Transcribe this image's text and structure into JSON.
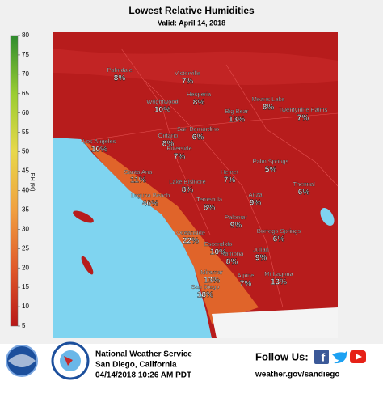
{
  "header": {
    "title": "Lowest Relative Humidities",
    "subtitle": "Valid: April 14, 2018"
  },
  "colorbar": {
    "label": "RH (%)",
    "ticks": [
      80,
      75,
      70,
      65,
      60,
      55,
      50,
      45,
      40,
      35,
      30,
      25,
      20,
      15,
      10,
      5
    ]
  },
  "cities": [
    {
      "name": "Palmdale",
      "value": "8%"
    },
    {
      "name": "Victorville",
      "value": "7%"
    },
    {
      "name": "Hesperia",
      "value": "8%"
    },
    {
      "name": "Wrightwood",
      "value": "10%"
    },
    {
      "name": "Means Lake",
      "value": "8%"
    },
    {
      "name": "Big Bear",
      "value": "13%"
    },
    {
      "name": "Twentynine Palms",
      "value": "7%"
    },
    {
      "name": "San Bernardino",
      "value": "6%"
    },
    {
      "name": "Ontario",
      "value": "8%"
    },
    {
      "name": "Riverside",
      "value": "7%"
    },
    {
      "name": "Los Angeles",
      "value": "10%"
    },
    {
      "name": "Palm Springs",
      "value": "5%"
    },
    {
      "name": "Santa Ana",
      "value": "11%"
    },
    {
      "name": "Lake Elsinore",
      "value": "8%"
    },
    {
      "name": "Hemet",
      "value": "7%"
    },
    {
      "name": "Thermal",
      "value": "6%"
    },
    {
      "name": "Laguna Beach",
      "value": "46%"
    },
    {
      "name": "Temecula",
      "value": "8%"
    },
    {
      "name": "Anza",
      "value": "9%"
    },
    {
      "name": "Palomar",
      "value": "9%"
    },
    {
      "name": "Borrego Springs",
      "value": "6%"
    },
    {
      "name": "Oceanside",
      "value": "22%"
    },
    {
      "name": "Escondido",
      "value": "10%"
    },
    {
      "name": "Ramona",
      "value": "8%"
    },
    {
      "name": "Julian",
      "value": "9%"
    },
    {
      "name": "Miramar",
      "value": "13%"
    },
    {
      "name": "Alpine",
      "value": "7%"
    },
    {
      "name": "Mt Laguna",
      "value": "13%"
    },
    {
      "name": "San Diego",
      "value": "18%"
    }
  ],
  "footer": {
    "agency": "National Weather Service",
    "office": "San Diego, California",
    "issued": "04/14/2018 10:26 AM PDT",
    "follow": "Follow Us:",
    "website": "weather.gov/sandiego"
  }
}
